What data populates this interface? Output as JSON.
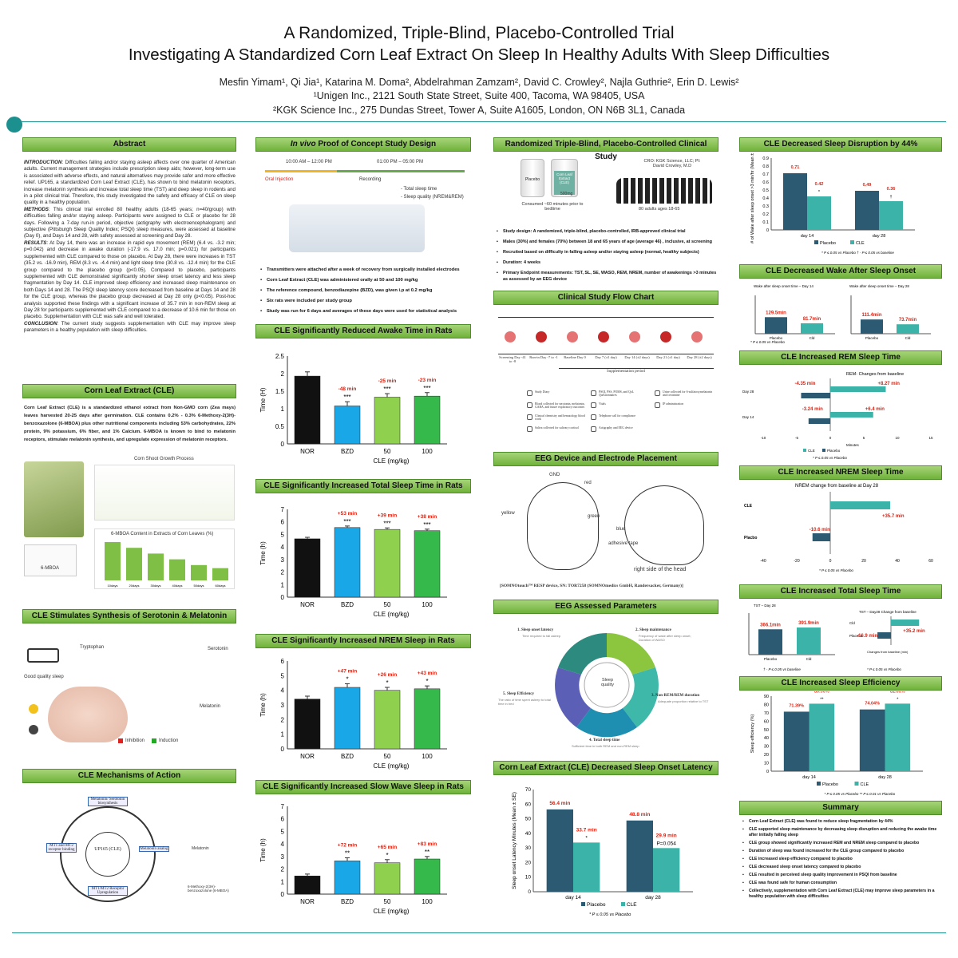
{
  "header": {
    "title_line1": "A Randomized, Triple-Blind, Placebo-Controlled Trial",
    "title_line2": "Investigating A Standardized Corn Leaf Extract On Sleep In Healthy Adults With Sleep Difficulties",
    "authors": "Mesfin Yimam¹, Qi Jia¹, Katarina M. Doma², Abdelrahman Zamzam², David C. Crowley², Najla Guthrie², Erin D. Lewis²",
    "affiliation1": "¹Unigen Inc., 2121 South State Street, Suite 400, Tacoma, WA 98405, USA",
    "affiliation2": "²KGK Science Inc., 275 Dundas Street, Tower A, Suite A1605, London, ON N6B 3L1, Canada"
  },
  "sections": {
    "abstract": "Abstract",
    "corn_leaf": "Corn Leaf Extract (CLE)",
    "serotonin": "CLE Stimulates Synthesis of Serotonin & Melatonin",
    "mechanisms": "CLE Mechanisms of Action",
    "invivo_em": "In vivo",
    "invivo_rest": " Proof of Concept Study Design",
    "awake": "CLE Significantly Reduced Awake Time in Rats",
    "total_rats": "CLE Significantly Increased Total Sleep Time in Rats",
    "nrem_rats": "CLE Significantly Increased NREM Sleep in Rats",
    "sws_rats": "CLE Significantly Increased Slow Wave Sleep in Rats",
    "clinical": "Randomized Triple-Blind, Placebo-Controlled Clinical Study",
    "flow": "Clinical Study Flow Chart",
    "eeg_device": "EEG Device and Electrode Placement",
    "eeg_params": "EEG Assessed Parameters",
    "onset_latency": "Corn Leaf Extract (CLE) Decreased Sleep Onset Latency",
    "disruption": "CLE Decreased Sleep Disruption by 44%",
    "wake_onset": "CLE Decreased Wake After Sleep Onset",
    "rem": "CLE Increased REM Sleep Time",
    "nrem": "CLE Increased NREM Sleep Time",
    "tst": "CLE Increased Total Sleep Time",
    "efficiency": "CLE Increased Sleep Efficiency",
    "summary": "Summary"
  },
  "abstract": {
    "intro_label": "INTRODUCTION",
    "intro": ": Difficulties falling and/or staying asleep affects over one quarter of American adults. Current management strategies include prescription sleep aids; however, long-term use is associated with adverse effects, and natural alternatives may provide safer and more effective relief. UP165, a standardized Corn Leaf Extract (CLE), has shown to bind melatonin receptors, increase melatonin synthesis and increase total sleep time (TST) and deep sleep in rodents and in a pilot clinical trial. Therefore, this study investigated the safety and efficacy of CLE on sleep quality in a healthy population.",
    "methods_label": "METHODS",
    "methods": ": This clinical trial enrolled 80 healthy adults (18-65 years; n=40/group) with difficulties falling and/or staying asleep. Participants were assigned to CLE or placebo for 28 days. Following a 7-day run-in period, objective (actigraphy with electroencephalogram) and subjective (Pittsburgh Sleep Quality Index; PSQI) sleep measures, were assessed at baseline (Day 0), and Days 14 and 28, with safety assessed at screening and Day 28.",
    "results_label": "RESULTS",
    "results": ": At Day 14, there was an increase in rapid eye movement (REM) (6.4 vs. -3.2 min; p=0.042) and decrease in awake duration (-17.9 vs. 17.0 min; p=0.021) for participants supplemented with CLE compared to those on placebo. At Day 28, there were increases in TST (35.2 vs. -16.9 min), REM (8.3 vs. -4.4 min) and light sleep time (30.8 vs. -12.4 min) for the CLE group compared to the placebo group (p<0.05). Compared to placebo, participants supplemented with CLE demonstrated significantly shorter sleep onset latency and less sleep fragmentation by Day 14. CLE improved sleep efficiency and increased sleep maintenance on both Days 14 and 28. The PSQI sleep latency score decreased from baseline at Days 14 and 28 for the CLE group, whereas the placebo group decreased at Day 28 only (p<0.05). Post-hoc analysis supported these findings with a significant increase of 35.7 min in non-REM sleep at Day 28 for participants supplemented with CLE compared to a decrease of 10.6 min for those on placebo. Supplementation with CLE was safe and well tolerated.",
    "conclusion_label": "CONCLUSION",
    "conclusion": ": The current study suggests supplementation with CLE may improve sleep parameters in a healthy population with sleep difficulties."
  },
  "corn": {
    "text": "Corn Leaf Extract (CLE) is a standardized ethanol extract from Non-GMO corn (Zea mays) leaves harvested 20-25 days after germination. CLE contains 0.2% - 0.3% 6-Methoxy-2(3H)-benzoxazolone (6-MBOA) plus other nutritional components including 53% carbohydrates, 22% protein, 9% potassium, 6% fiber, and 1% Calcium. 6-MBOA is known to bind to melatonin receptors, stimulate melatonin synthesis, and upregulate expression of melatonin receptors.",
    "growth_title": "Corn Shoot Growth Process",
    "mboa_title": "6-MBOA Content in Extracts of Corn Leaves (%)",
    "mboa_label": "6-MBOA",
    "mboa_categories": [
      "10days",
      "20days",
      "30days",
      "40days",
      "50days",
      "60days"
    ],
    "mboa_values": [
      1.0,
      0.85,
      0.7,
      0.55,
      0.4,
      0.32
    ]
  },
  "serotonin": {
    "good_sleep": "Good quality sleep",
    "tryptophan": "Tryptophan",
    "serotonin": "Serotonin",
    "melatonin": "Melatonin",
    "inhibition": "Inhibition",
    "induction": "Induction"
  },
  "mechanisms": {
    "center": "UP165 (CLE)",
    "top": "Melatonin/ Serotonin biosynthesis",
    "right": "Melatonin analog",
    "bottom": "MT1/MT2 Receptor Upregulation",
    "left": "MT1 and MT2 receptor binding",
    "mol1": "Melatonin",
    "mol2": "6-Methoxy-2(3H)-benzoxazolone (6-MBOA)"
  },
  "invivo": {
    "time1": "10:00 AM – 12:00 PM",
    "time2": "01:00 PM – 05:00 PM",
    "oral": "Oral Injection",
    "recording": "Recording",
    "m1": "- Total sleep time",
    "m2": "- Sleep quality (NREM&REM)",
    "bullets": [
      "Transmitters were attached after a week of recovery from surgically installed electrodes",
      "Corn Leaf Extract (CLE) was administered orally at 50 and 100 mg/kg",
      "The reference compound, benzodiazepine (BZD), was given i.p at 0.2 mg/kg",
      "Six rats were included per study group",
      "Study was run for 6 days and averages of these days were used for statistical analysis"
    ]
  },
  "rat_charts": {
    "categories": [
      "NOR",
      "BZD",
      "50",
      "100"
    ],
    "xlabel": "CLE (mg/kg)",
    "colors": [
      "#111111",
      "#1aa7e8",
      "#8fd14f",
      "#35b94a"
    ],
    "awake": {
      "ylabel": "Time (H)",
      "ylim": [
        0,
        2.5
      ],
      "ticks": [
        0,
        0.5,
        1,
        1.5,
        2,
        2.5
      ],
      "values": [
        1.93,
        1.08,
        1.33,
        1.36
      ],
      "errors": [
        0.12,
        0.12,
        0.1,
        0.1
      ],
      "labels": [
        "",
        "-48 min",
        "-25 min",
        "-23 min"
      ],
      "sig": [
        "",
        "***",
        "***",
        "***"
      ]
    },
    "total": {
      "ylabel": "Time (h)",
      "ylim": [
        0,
        7
      ],
      "ticks": [
        0,
        1,
        2,
        3,
        4,
        5,
        6,
        7
      ],
      "values": [
        4.65,
        5.55,
        5.4,
        5.3
      ],
      "errors": [
        0.12,
        0.12,
        0.12,
        0.12
      ],
      "labels": [
        "",
        "+53 min",
        "+39 min",
        "+38 min"
      ],
      "sig": [
        "",
        "***",
        "***",
        "***"
      ]
    },
    "nrem": {
      "ylabel": "Time (h)",
      "ylim": [
        0,
        6
      ],
      "ticks": [
        0,
        1,
        2,
        3,
        4,
        5,
        6
      ],
      "values": [
        3.4,
        4.2,
        4.0,
        4.1
      ],
      "errors": [
        0.2,
        0.25,
        0.2,
        0.2
      ],
      "labels": [
        "",
        "+47 min",
        "+26 min",
        "+43 min"
      ],
      "sig": [
        "",
        "*",
        "*",
        "*"
      ]
    },
    "sws": {
      "ylabel": "Time (h)",
      "ylim": [
        0,
        7
      ],
      "ticks": [
        0,
        1,
        2,
        3,
        4,
        5,
        6,
        7
      ],
      "values": [
        1.45,
        2.65,
        2.5,
        2.8
      ],
      "errors": [
        0.15,
        0.25,
        0.25,
        0.2
      ],
      "labels": [
        "",
        "+72 min",
        "+65 min",
        "+83 min"
      ],
      "sig": [
        "",
        "**",
        "*",
        "**"
      ]
    }
  },
  "clinical": {
    "placebo": "Placebo",
    "cle": "Corn Leaf Extract (CLE)",
    "dose": "500mg",
    "consumed": "Consumed ~60 minutes prior to bedtime",
    "cro": "CRO: KGK Science, LLC; PI: David Crowley, M.D",
    "adults": "80 adults ages 18-65",
    "bullets": [
      "Study design: A randomized, triple-blind, placebo-controlled, IRB-approved clinical trial",
      "Males (30%) and females (70%) between 18 and 65 years of age (average 46) , inclusive, at screening",
      "Recruited based on difficulty in falling asleep and/or staying asleep (normal, healthy subjects)",
      "Duration: 4 weeks",
      "Primary Endpoint measurements: TST, SL, SE, WASO, REM, NREM, number of awakenings >3 minutes as assessed by an EEG device"
    ]
  },
  "flow": {
    "visits": [
      "Screening Day -41 to -8",
      "Run-in Day -7 to -1",
      "Baseline Day 0",
      "Day 7 (±1 day)",
      "Day 14 (±2 days)",
      "Day 21 (±1 day)",
      "Day 28 (±2 days)"
    ],
    "supplementation": "Supplementation period",
    "legend": [
      "Study Diary",
      "Blood collected for serotonin, melatonin, GABA, and future exploratory outcomes",
      "Clinical chemistry and hematology blood work",
      "Saliva collected for salivary cortisol",
      "PSQI, PSS, POMS, and QoL Questionnaires",
      "Vitals",
      "Telephone call for compliance",
      "Actigraphy and EEG device",
      "Urine collected for 6-sulfatoxymelatonin and creatinine",
      "IP administration"
    ]
  },
  "eeg": {
    "gnd": "GND",
    "red": "red",
    "yellow": "yellow",
    "green": "green",
    "blue": "blue",
    "tape": "adhesive tape",
    "side": "right side of the head",
    "device": "[SOMNOtouch™ RESP device, SN: TOR7258 (SOMNOmedics GmbH, Randersacker, Germany)]"
  },
  "params": {
    "center": "Sleep quality",
    "p1": "1. Sleep onset latency",
    "p1d": "Time required to fall asleep",
    "p2": "2. Sleep maintenance",
    "p2d": "Frequency of wake after sleep onset; Duration of WASO",
    "p3": "3. Non-REM/REM duration",
    "p3d": "Adequate proportion relative to TST",
    "p4": "4. Total sleep time",
    "p4d": "Sufficient time in both REM and non-REM sleep",
    "p5": "5. Sleep Efficiency",
    "p5d": "The ratio of time spent asleep to total time in bed"
  },
  "onset": {
    "ylabel": "Sleep onset Latency Minutes (Mean ± SE)",
    "ylim": [
      0,
      70
    ],
    "ticks": [
      0,
      10,
      20,
      30,
      40,
      50,
      60,
      70
    ],
    "groups": [
      "day 14",
      "day 28"
    ],
    "placebo": [
      56.4,
      48.8
    ],
    "cle": [
      33.7,
      29.9
    ],
    "labels_placebo": [
      "56.4 min",
      "48.8 min"
    ],
    "labels_cle": [
      "33.7 min",
      "29.9 min"
    ],
    "sig": [
      "*",
      "P=0.054"
    ],
    "legend_placebo": "Placebo",
    "legend_cle": "CLE",
    "footnote": "* P ≤ 0.05 vs Placebo"
  },
  "disruption": {
    "ylabel": "# of Wake after sleep onset >3 min/hr (Mean ± SE)",
    "ylim": [
      0,
      0.9
    ],
    "ticks": [
      0,
      0.1,
      0.2,
      0.3,
      0.4,
      0.5,
      0.6,
      0.7,
      0.8,
      0.9
    ],
    "groups": [
      "day 14",
      "day 28"
    ],
    "placebo": [
      0.71,
      0.49
    ],
    "cle": [
      0.42,
      0.36
    ],
    "labels_placebo": [
      "0.71",
      "0.49"
    ],
    "labels_cle": [
      "0.42",
      "0.36"
    ],
    "sig": [
      "*",
      "†"
    ],
    "legend_placebo": "Placebo",
    "legend_cle": "CLE",
    "footnote": "* P ≤ 0.05 vs Placebo    † - P ≤ 0.05 vs baseline"
  },
  "waso": {
    "t1": "Wake after sleep onset time – Day 14",
    "t2": "Wake after sleep onset time – Day 28",
    "d14": [
      129.5,
      81.7
    ],
    "d28": [
      111.4,
      73.7
    ],
    "l14": [
      "129.5min",
      "81.7min"
    ],
    "l28": [
      "111.4min",
      "73.7min"
    ],
    "cats": [
      "Placebo",
      "Cld"
    ],
    "footnote": "* P ≤ 0.05 vs Placebo"
  },
  "rem": {
    "title": "REM- Changes from baseline",
    "rows": [
      "Day 28",
      "Day 14"
    ],
    "placebo": [
      -4.35,
      -3.24
    ],
    "cle": [
      8.27,
      6.4
    ],
    "lp": [
      "-4.35 min",
      "-3.24 min"
    ],
    "lc": [
      "+8.27 min",
      "+6.4 min"
    ],
    "xlabel": "Minutes",
    "ticks": [
      -10,
      -5,
      0,
      5,
      10,
      15
    ],
    "legend_cle": "CLE",
    "legend_placebo": "Placebo",
    "footnote": "* P ≤ 0.05 vs Placebo"
  },
  "nremh": {
    "title": "NREM change from baseline at Day 28",
    "rows": [
      "CLE",
      "Placbo"
    ],
    "values": [
      35.7,
      -10.6
    ],
    "labels": [
      "+35.7 min",
      "-10.6 min"
    ],
    "ticks": [
      -40,
      -20,
      0,
      20,
      40,
      60
    ],
    "footnote": "* P ≤ 0.05 vs Placebo"
  },
  "tstc": {
    "t1": "TST – Day 28",
    "t2": "TST – Day28 Change from baseline",
    "vals": [
      366.1,
      391.9
    ],
    "labels": [
      "366.1min",
      "391.9min"
    ],
    "cats": [
      "Placebo",
      "Cld"
    ],
    "chg": [
      35.2,
      -16.9
    ],
    "chgl": [
      "+35.2 min",
      "-16.9 min"
    ],
    "rows": [
      "Cld",
      "Placebo"
    ],
    "xlabel": "Changes from baseline (min)",
    "f1": "† - P ≤ 0.05 vs baseline",
    "f2": "* P ≤ 0.05 vs Placebo"
  },
  "eff": {
    "ylabel": "Sleep efficiency (%)",
    "ylim": [
      0,
      90
    ],
    "ticks": [
      0,
      10,
      20,
      30,
      40,
      50,
      60,
      70,
      80,
      90
    ],
    "groups": [
      "day 14",
      "day 28"
    ],
    "placebo": [
      71.39,
      74.04
    ],
    "cle": [
      80.96,
      81.03
    ],
    "lp": [
      "71.39%",
      "74.04%"
    ],
    "lc": [
      "80.96%",
      "81.03%"
    ],
    "sig": [
      "**",
      "*"
    ],
    "legend_placebo": "Placebo",
    "legend_cle": "CLE",
    "footnote": "* P ≤ 0.05 vs Placebo     ** P ≤ 0.01 vs Placebo"
  },
  "summary": [
    "Corn Leaf Extract (CLE) was found to reduce sleep fragmentation by 44%",
    "CLE supported sleep maintenance by decreasing sleep disruption and reducing the awake time after initially falling sleep",
    "CLE group showed significantly increased REM and NREM sleep compared to placebo",
    "Duration of sleep was found increased for the CLE group compared to placebo",
    "CLE increased sleep efficiency compared to placebo",
    "CLE decreased sleep onset latency compared to placebo",
    "CLE resulted in perceived sleep quality improvement in PSQI from baseline",
    "CLE was found safe for human consumption",
    "Collectively, supplementation with Corn Leaf Extract (CLE) may improve sleep parameters in a healthy population with sleep difficulties"
  ],
  "colors": {
    "teal": "#1c8f8f",
    "header_green": "#7fbf45",
    "dark_bar": "#2c5a73",
    "light_bar": "#3bb3a8"
  }
}
